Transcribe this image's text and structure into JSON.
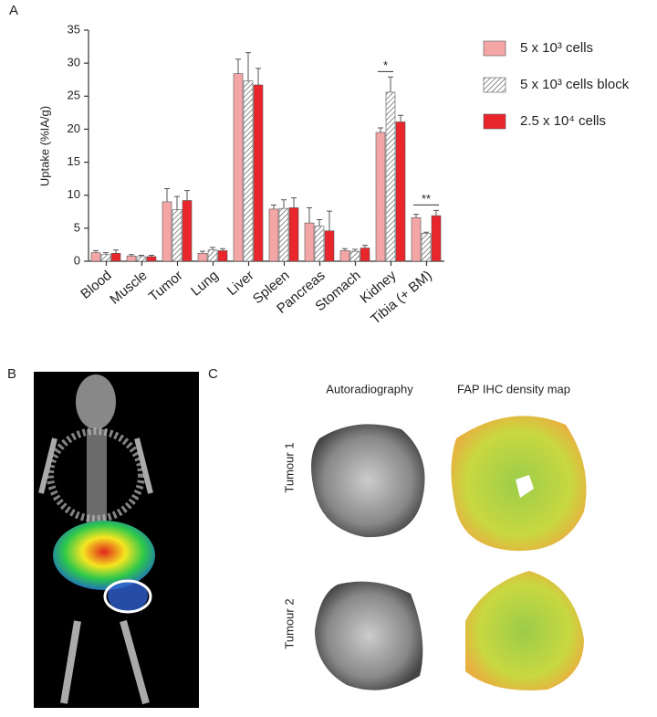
{
  "chart_data": {
    "type": "bar",
    "ylabel": "Uptake (%IA/g)",
    "categories": [
      "Blood",
      "Muscle",
      "Tumor",
      "Lung",
      "Liver",
      "Spleen",
      "Pancreas",
      "Stomach",
      "Kidney",
      "Tibia (+ BM)"
    ],
    "series": [
      {
        "name": "5 x 10³ cells",
        "color": "#f4a6a6",
        "values": [
          1.3,
          0.8,
          9.0,
          1.2,
          28.4,
          7.9,
          5.8,
          1.6,
          19.5,
          6.6
        ],
        "errors": [
          0.3,
          0.2,
          2.0,
          0.3,
          2.2,
          0.6,
          2.3,
          0.3,
          0.7,
          0.5
        ]
      },
      {
        "name": "5 x 10³ cells block",
        "color": "#ffffff",
        "pattern": "hatch",
        "values": [
          1.0,
          0.7,
          7.8,
          1.7,
          27.3,
          8.0,
          5.3,
          1.5,
          25.6,
          4.2
        ],
        "errors": [
          0.3,
          0.2,
          2.0,
          0.4,
          4.3,
          1.3,
          1.0,
          0.3,
          2.3,
          0.2
        ]
      },
      {
        "name": "2.5 x 10⁴ cells",
        "color": "#e8262b",
        "values": [
          1.2,
          0.7,
          9.2,
          1.6,
          26.7,
          8.1,
          4.6,
          2.0,
          21.1,
          6.9
        ],
        "errors": [
          0.5,
          0.2,
          1.5,
          0.3,
          2.5,
          1.5,
          3.0,
          0.4,
          1.0,
          0.8
        ]
      }
    ],
    "ylim": [
      0,
      35
    ],
    "yticks": [
      0,
      5,
      10,
      15,
      20,
      25,
      30,
      35
    ],
    "grid": false,
    "annotations": [
      "*",
      "**"
    ]
  },
  "figure": {
    "panel_labels": [
      "A",
      "B",
      "C"
    ],
    "column_titles": [
      "Autoradiography",
      "FAP IHC density map"
    ],
    "row_labels": [
      "Tumour 1",
      "Tumour 2"
    ]
  }
}
